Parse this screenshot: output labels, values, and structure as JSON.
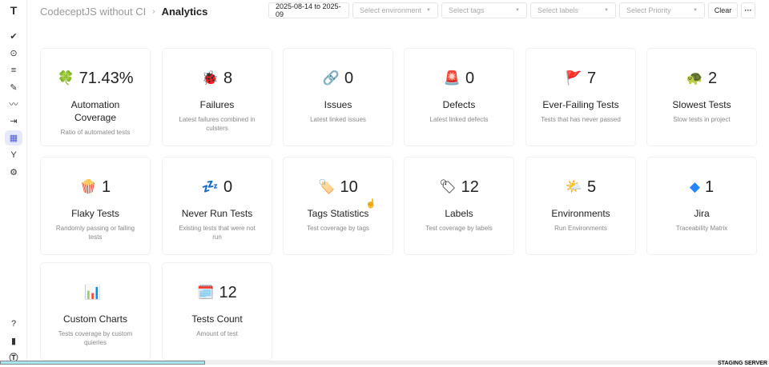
{
  "header": {
    "project": "CodeceptJS without CI",
    "separator": "›",
    "page": "Analytics"
  },
  "filters": {
    "date_range": "2025-08-14 to 2025-09",
    "environment": "Select environment",
    "tags": "Select tags",
    "labels": "Select labels",
    "priority": "Select Priority",
    "clear": "Clear",
    "more": "···"
  },
  "sidebar": {
    "logo": "T",
    "items": [
      "check-icon",
      "play-icon",
      "list-check-icon",
      "edit-icon",
      "pulse-icon",
      "import-icon",
      "analytics-icon",
      "branch-icon",
      "gear-icon"
    ],
    "bottom": [
      "help-icon",
      "docs-icon",
      "profile-icon"
    ]
  },
  "cards": [
    {
      "icon": "🍀",
      "value": "71.43%",
      "title": "Automation Coverage",
      "desc": "Ratio of automated tests"
    },
    {
      "icon": "🐞",
      "value": "8",
      "title": "Failures",
      "desc": "Latest failures combined in culsters"
    },
    {
      "icon": "🔗",
      "value": "0",
      "title": "Issues",
      "desc": "Latest linked issues"
    },
    {
      "icon": "🚨",
      "value": "0",
      "title": "Defects",
      "desc": "Latest linked defects"
    },
    {
      "icon": "🚩",
      "value": "7",
      "title": "Ever-Failing Tests",
      "desc": "Tests that has never passed"
    },
    {
      "icon": "🐢",
      "value": "2",
      "title": "Slowest Tests",
      "desc": "Slow tests in project"
    },
    {
      "icon": "🍿",
      "value": "1",
      "title": "Flaky Tests",
      "desc": "Randomly passing or failing tests"
    },
    {
      "icon": "💤",
      "value": "0",
      "title": "Never Run Tests",
      "desc": "Existing tests that were not run"
    },
    {
      "icon": "🏷️",
      "value": "10",
      "title": "Tags Statistics",
      "desc": "Test coverage by tags"
    },
    {
      "icon": "🏷",
      "value": "12",
      "title": "Labels",
      "desc": "Test coverage by labels"
    },
    {
      "icon": "🌤️",
      "value": "5",
      "title": "Environments",
      "desc": "Run Environments"
    },
    {
      "icon": "◆",
      "value": "1",
      "title": "Jira",
      "desc": "Traceability Matrix"
    },
    {
      "icon": "📊",
      "value": "",
      "title": "Custom Charts",
      "desc": "Tests coverage by custom quieries"
    },
    {
      "icon": "🗓️",
      "value": "12",
      "title": "Tests Count",
      "desc": "Amount of test"
    }
  ],
  "footer": {
    "staging": "STAGING SERVER"
  }
}
